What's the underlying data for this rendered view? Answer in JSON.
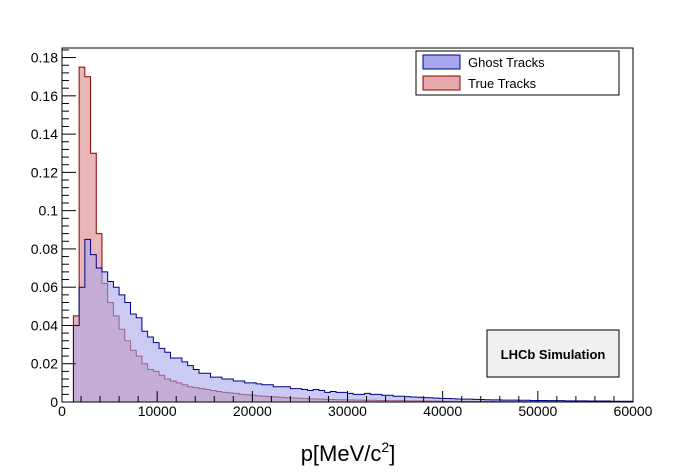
{
  "chart_data": {
    "type": "histogram",
    "xlabel": "p[MeV/c",
    "xlabel_sup": "2",
    "xlabel_close": "]",
    "xlim": [
      0,
      60000
    ],
    "ylim": [
      0,
      0.185
    ],
    "x_ticks": [
      0,
      10000,
      20000,
      30000,
      40000,
      50000,
      60000
    ],
    "x_tick_labels": [
      "0",
      "10000",
      "20000",
      "30000",
      "40000",
      "50000",
      "60000"
    ],
    "y_ticks": [
      0,
      0.02,
      0.04,
      0.06,
      0.08,
      0.1,
      0.12,
      0.14,
      0.16,
      0.18
    ],
    "y_tick_labels": [
      "0",
      "0.02",
      "0.04",
      "0.06",
      "0.08",
      "0.1",
      "0.12",
      "0.14",
      "0.16",
      "0.18"
    ],
    "bin_width": 600,
    "bin_start": 1200,
    "legend_position": "top-right",
    "annotation": "LHCb Simulation",
    "series": [
      {
        "name": "Ghost Tracks",
        "fill": "#a8a6ec",
        "stroke": "#00008b",
        "values": [
          0.04,
          0.06,
          0.085,
          0.077,
          0.07,
          0.068,
          0.063,
          0.06,
          0.056,
          0.052,
          0.046,
          0.044,
          0.037,
          0.034,
          0.031,
          0.028,
          0.026,
          0.023,
          0.023,
          0.021,
          0.019,
          0.017,
          0.015,
          0.015,
          0.013,
          0.013,
          0.012,
          0.012,
          0.011,
          0.011,
          0.01,
          0.01,
          0.0095,
          0.009,
          0.009,
          0.008,
          0.008,
          0.008,
          0.007,
          0.007,
          0.0065,
          0.006,
          0.0065,
          0.006,
          0.005,
          0.0055,
          0.005,
          0.005,
          0.0045,
          0.004,
          0.004,
          0.0045,
          0.004,
          0.004,
          0.0035,
          0.0035,
          0.003,
          0.003,
          0.0028,
          0.0026,
          0.0025,
          0.0023,
          0.0022,
          0.002,
          0.0019,
          0.0018,
          0.0017,
          0.0016,
          0.0015,
          0.0015,
          0.0014,
          0.0013,
          0.0012,
          0.0011,
          0.0011,
          0.001,
          0.001,
          0.001,
          0.0009,
          0.0009,
          0.0008,
          0.0008,
          0.0008,
          0.0007,
          0.0007,
          0.0007,
          0.0006,
          0.0006,
          0.0006,
          0.0006,
          0.0005,
          0.0005,
          0.0005,
          0.0005,
          0.0004,
          0.0004,
          0.0004,
          0.0004
        ]
      },
      {
        "name": "True Tracks",
        "fill": "#e6a8a8",
        "stroke": "#8b0000",
        "values": [
          0.045,
          0.175,
          0.17,
          0.13,
          0.088,
          0.062,
          0.052,
          0.045,
          0.038,
          0.032,
          0.027,
          0.024,
          0.02,
          0.017,
          0.016,
          0.014,
          0.012,
          0.011,
          0.01,
          0.009,
          0.008,
          0.0075,
          0.007,
          0.0065,
          0.006,
          0.0055,
          0.005,
          0.0048,
          0.0045,
          0.004,
          0.0038,
          0.0035,
          0.0032,
          0.003,
          0.0028,
          0.0026,
          0.0025,
          0.0022,
          0.0021,
          0.002,
          0.0018,
          0.0017,
          0.0016,
          0.0015,
          0.0014,
          0.0013,
          0.0012,
          0.0012,
          0.0011,
          0.001,
          0.001,
          0.0009,
          0.0009,
          0.0008,
          0.0008,
          0.0007,
          0.0007,
          0.0007,
          0.0006,
          0.0006,
          0.0006,
          0.0005,
          0.0005,
          0.0005,
          0.0004,
          0.0004,
          0.0004,
          0.0004,
          0.0003,
          0.0003,
          0.0003,
          0.0003,
          0.0003,
          0.0003,
          0.0002,
          0.0002,
          0.0002,
          0.0002,
          0.0002,
          0.0002,
          0.0002,
          0.0002,
          0.0002,
          0.0002,
          0.0001,
          0.0001,
          0.0001,
          0.0001,
          0.0001,
          0.0001,
          0.0001,
          0.0001,
          0.0001,
          0.0001,
          0.0001,
          0.0001,
          0.0001,
          0.0001
        ]
      }
    ]
  }
}
